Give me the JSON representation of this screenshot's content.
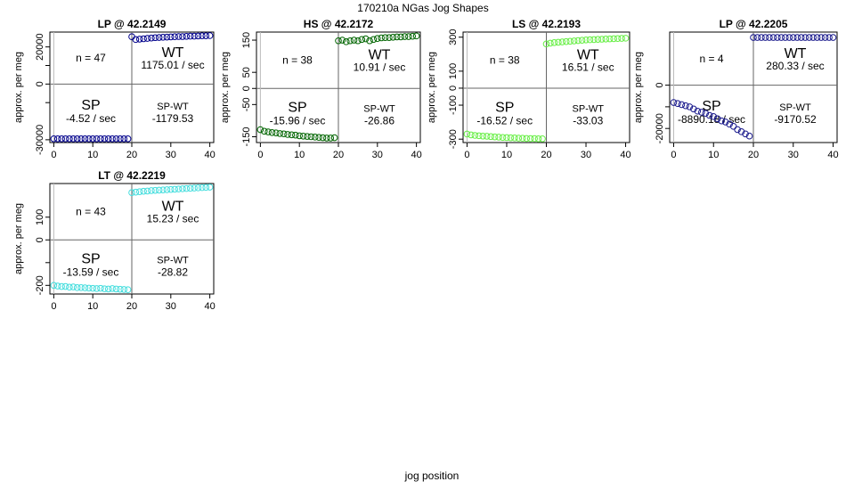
{
  "page": {
    "title": "170210a   NGas Jog Shapes",
    "xlabel": "jog position"
  },
  "chart_data": [
    {
      "type": "scatter",
      "title": "LP @ 42.2149",
      "ylabel": "approx. per meg",
      "color": "#00008b",
      "xlim": [
        -1,
        41
      ],
      "ylim": [
        -31500,
        28000
      ],
      "xticks": [
        0,
        10,
        20,
        30,
        40
      ],
      "yticks": [
        -30000,
        -10000,
        0,
        10000,
        20000
      ],
      "ytick_labels": [
        "-30000",
        "",
        "0",
        "",
        "20000"
      ],
      "n_label": "n = 47",
      "wt": {
        "label": "WT",
        "rate": "1175.01 / sec"
      },
      "sp": {
        "label": "SP",
        "rate": "-4.52 / sec"
      },
      "spwt": {
        "label": "SP-WT",
        "value": "-1179.53"
      },
      "series": [
        {
          "x": [
            0,
            1,
            2,
            3,
            4,
            5,
            6,
            7,
            8,
            9,
            10,
            11,
            12,
            13,
            14,
            15,
            16,
            17,
            18,
            19
          ],
          "y": [
            -29500,
            -29500,
            -29500,
            -29500,
            -29500,
            -29500,
            -29500,
            -29500,
            -29500,
            -29500,
            -29500,
            -29500,
            -29500,
            -29500,
            -29500,
            -29500,
            -29500,
            -29500,
            -29500,
            -29500
          ]
        },
        {
          "x": [
            20,
            21,
            22,
            23,
            24,
            25,
            26,
            27,
            28,
            29,
            30,
            31,
            32,
            33,
            34,
            35,
            36,
            37,
            38,
            39,
            40
          ],
          "y": [
            25500,
            24000,
            24200,
            24400,
            24600,
            24800,
            25000,
            25100,
            25200,
            25300,
            25400,
            25500,
            25600,
            25600,
            25700,
            25800,
            25800,
            25900,
            26000,
            26000,
            26100
          ]
        }
      ]
    },
    {
      "type": "scatter",
      "title": "HS @ 42.2172",
      "ylabel": "approx. per meg",
      "color": "#006400",
      "xlim": [
        -1,
        41
      ],
      "ylim": [
        -168,
        175
      ],
      "xticks": [
        0,
        10,
        20,
        30,
        40
      ],
      "yticks": [
        -150,
        -50,
        0,
        50,
        150
      ],
      "ytick_labels": [
        "-150",
        "-50",
        "0",
        "50",
        "150"
      ],
      "n_label": "n = 38",
      "wt": {
        "label": "WT",
        "rate": "10.91 / sec"
      },
      "sp": {
        "label": "SP",
        "rate": "-15.96 / sec"
      },
      "spwt": {
        "label": "SP-WT",
        "value": "-26.86"
      },
      "series": [
        {
          "x": [
            0,
            1,
            2,
            3,
            4,
            5,
            6,
            7,
            8,
            9,
            10,
            11,
            12,
            13,
            14,
            15,
            16,
            17,
            18,
            19
          ],
          "y": [
            -128,
            -133,
            -135,
            -137,
            -138,
            -140,
            -141,
            -143,
            -144,
            -145,
            -147,
            -148,
            -149,
            -150,
            -151,
            -152,
            -153,
            -154,
            -154,
            -153
          ]
        },
        {
          "x": [
            20,
            21,
            22,
            23,
            24,
            25,
            26,
            27,
            28,
            29,
            30,
            31,
            32,
            33,
            34,
            35,
            36,
            37,
            38,
            39,
            40
          ],
          "y": [
            148,
            150,
            145,
            148,
            150,
            148,
            152,
            154,
            148,
            152,
            155,
            157,
            158,
            158,
            159,
            160,
            160,
            161,
            161,
            162,
            163
          ]
        }
      ]
    },
    {
      "type": "scatter",
      "title": "LS @ 42.2193",
      "ylabel": "approx. per meg",
      "color": "#66ee44",
      "xlim": [
        -1,
        41
      ],
      "ylim": [
        -320,
        330
      ],
      "xticks": [
        0,
        10,
        20,
        30,
        40
      ],
      "yticks": [
        -300,
        -100,
        0,
        100,
        300
      ],
      "ytick_labels": [
        "-300",
        "-100",
        "0",
        "100",
        "300"
      ],
      "n_label": "n = 38",
      "wt": {
        "label": "WT",
        "rate": "16.51 / sec"
      },
      "sp": {
        "label": "SP",
        "rate": "-16.52 / sec"
      },
      "spwt": {
        "label": "SP-WT",
        "value": "-33.03"
      },
      "series": [
        {
          "x": [
            0,
            1,
            2,
            3,
            4,
            5,
            6,
            7,
            8,
            9,
            10,
            11,
            12,
            13,
            14,
            15,
            16,
            17,
            18,
            19
          ],
          "y": [
            -270,
            -275,
            -278,
            -280,
            -282,
            -283,
            -285,
            -287,
            -288,
            -290,
            -291,
            -292,
            -293,
            -294,
            -295,
            -296,
            -297,
            -297,
            -298,
            -298
          ]
        },
        {
          "x": [
            20,
            21,
            22,
            23,
            24,
            25,
            26,
            27,
            28,
            29,
            30,
            31,
            32,
            33,
            34,
            35,
            36,
            37,
            38,
            39,
            40
          ],
          "y": [
            260,
            265,
            268,
            270,
            272,
            274,
            276,
            278,
            280,
            282,
            284,
            285,
            286,
            287,
            288,
            289,
            290,
            291,
            292,
            293,
            294
          ]
        }
      ]
    },
    {
      "type": "scatter",
      "title": "LP @ 42.2205",
      "ylabel": "approx. per meg",
      "color": "#1a1a8c",
      "xlim": [
        -1,
        41
      ],
      "ylim": [
        -26500,
        24500
      ],
      "xticks": [
        0,
        10,
        20,
        30,
        40
      ],
      "yticks": [
        -20000,
        -10000,
        0
      ],
      "ytick_labels": [
        "-20000",
        "",
        "0"
      ],
      "n_label": "n = 4",
      "wt": {
        "label": "WT",
        "rate": "280.33 / sec"
      },
      "sp": {
        "label": "SP",
        "rate": "-8890.18 / sec"
      },
      "spwt": {
        "label": "SP-WT",
        "value": "-9170.52"
      },
      "series": [
        {
          "x": [
            0,
            1,
            2,
            3,
            4,
            5,
            6,
            7,
            8,
            9,
            10,
            11,
            12,
            13,
            14,
            15,
            16,
            17,
            18,
            19
          ],
          "y": [
            -8000,
            -8500,
            -9000,
            -9500,
            -10000,
            -11000,
            -12000,
            -12500,
            -13000,
            -14000,
            -14500,
            -15500,
            -16500,
            -17000,
            -18000,
            -19000,
            -20500,
            -21500,
            -22500,
            -23500
          ]
        },
        {
          "x": [
            20,
            21,
            22,
            23,
            24,
            25,
            26,
            27,
            28,
            29,
            30,
            31,
            32,
            33,
            34,
            35,
            36,
            37,
            38,
            39,
            40
          ],
          "y": [
            22000,
            22000,
            22000,
            22000,
            22000,
            22000,
            22000,
            22000,
            22000,
            22000,
            22000,
            22000,
            22000,
            22000,
            22000,
            22000,
            22000,
            22000,
            22000,
            22000,
            22000
          ]
        }
      ]
    },
    {
      "type": "scatter",
      "title": "LT @ 42.2219",
      "ylabel": "approx. per meg",
      "color": "#44dddd",
      "xlim": [
        -1,
        41
      ],
      "ylim": [
        -238,
        248
      ],
      "xticks": [
        0,
        10,
        20,
        30,
        40
      ],
      "yticks": [
        -200,
        -100,
        0,
        100
      ],
      "ytick_labels": [
        "-200",
        "",
        "0",
        "100"
      ],
      "n_label": "n = 43",
      "wt": {
        "label": "WT",
        "rate": "15.23 / sec"
      },
      "sp": {
        "label": "SP",
        "rate": "-13.59 / sec"
      },
      "spwt": {
        "label": "SP-WT",
        "value": "-28.82"
      },
      "series": [
        {
          "x": [
            0,
            1,
            2,
            3,
            4,
            5,
            6,
            7,
            8,
            9,
            10,
            11,
            12,
            13,
            14,
            15,
            16,
            17,
            18,
            19
          ],
          "y": [
            -200,
            -203,
            -205,
            -205,
            -208,
            -207,
            -210,
            -210,
            -211,
            -212,
            -213,
            -214,
            -213,
            -215,
            -216,
            -214,
            -216,
            -217,
            -218,
            -219
          ]
        },
        {
          "x": [
            20,
            21,
            22,
            23,
            24,
            25,
            26,
            27,
            28,
            29,
            30,
            31,
            32,
            33,
            34,
            35,
            36,
            37,
            38,
            39,
            40
          ],
          "y": [
            208,
            210,
            212,
            214,
            215,
            217,
            218,
            219,
            220,
            221,
            222,
            223,
            224,
            225,
            226,
            227,
            228,
            229,
            230,
            231,
            232
          ]
        }
      ]
    }
  ]
}
